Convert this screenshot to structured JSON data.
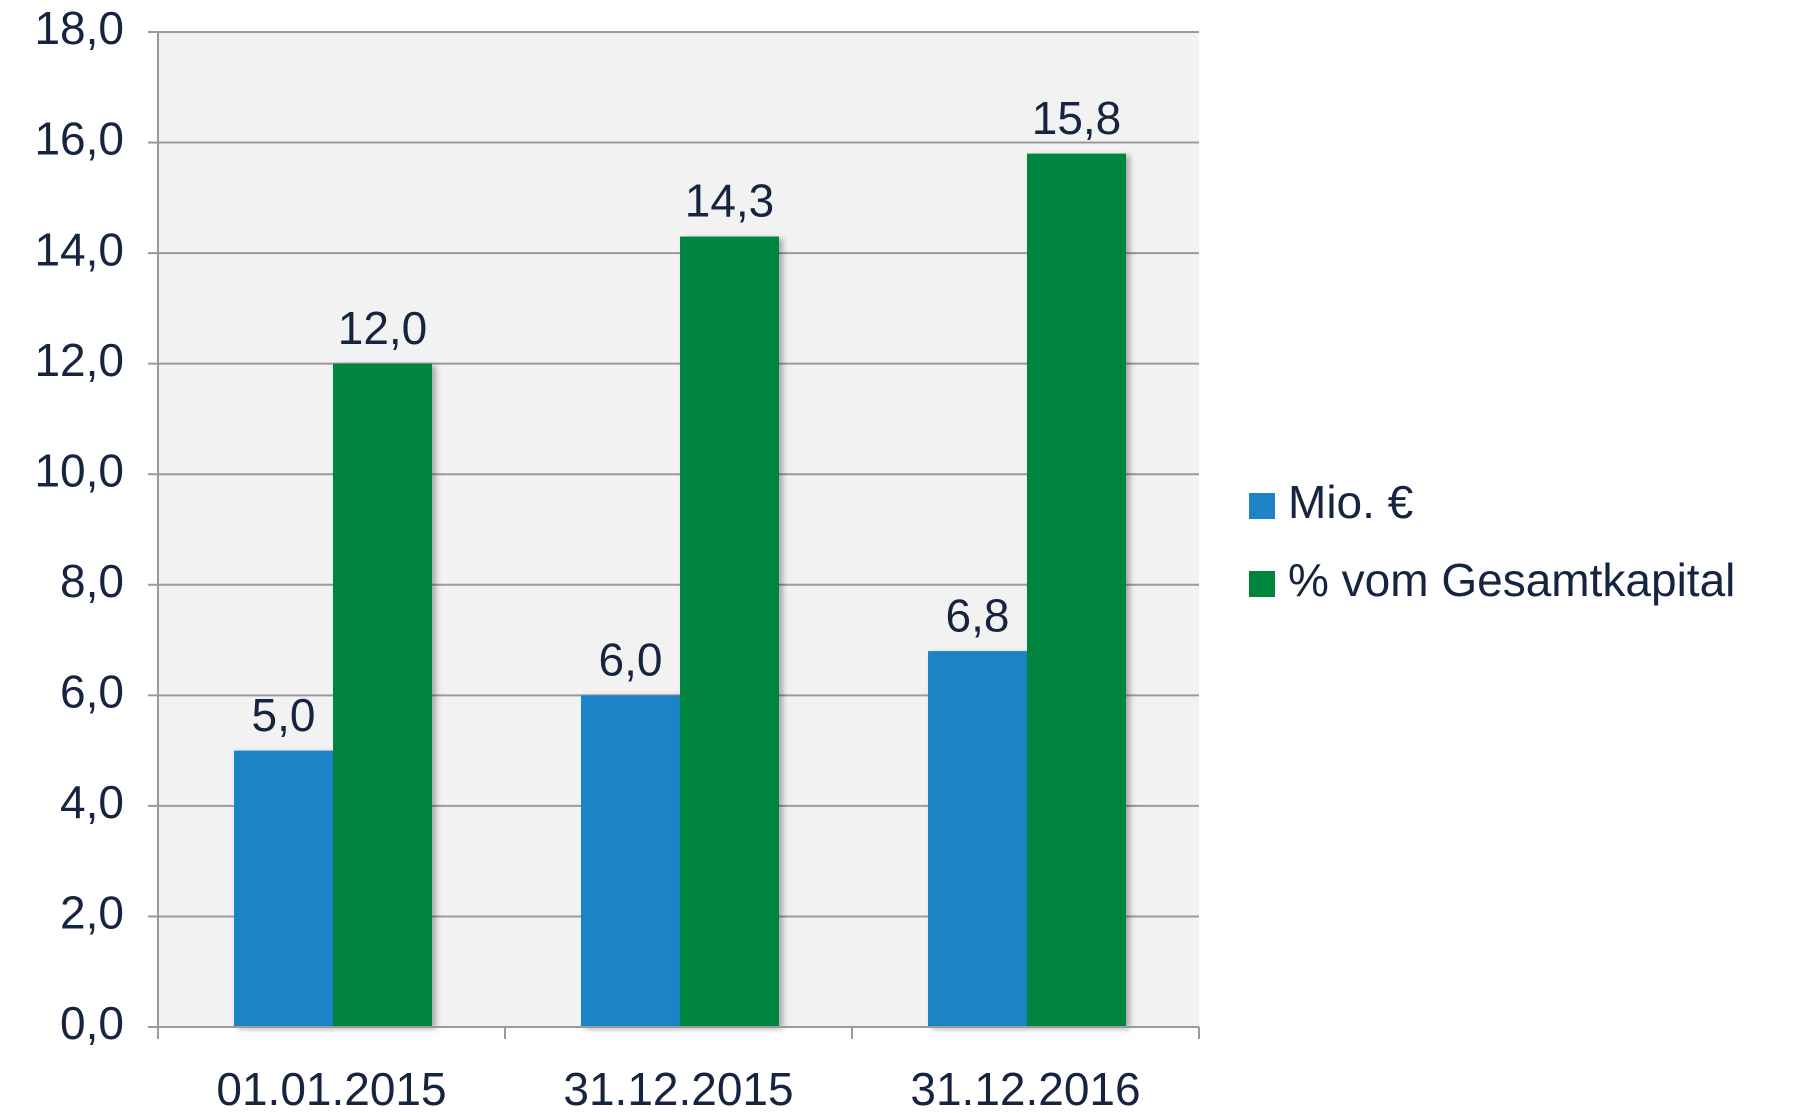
{
  "chart_data": {
    "type": "bar",
    "categories": [
      "01.01.2015",
      "31.12.2015",
      "31.12.2016"
    ],
    "series": [
      {
        "name": "Mio. €",
        "color": "#1f83c6",
        "values": [
          5.0,
          6.0,
          6.8
        ],
        "value_labels": [
          "5,0",
          "6,0",
          "6,8"
        ]
      },
      {
        "name": "% vom Gesamtkapital",
        "color": "#00853f",
        "values": [
          12.0,
          14.3,
          15.8
        ],
        "value_labels": [
          "12,0",
          "14,3",
          "15,8"
        ]
      }
    ],
    "ylim": [
      0,
      18
    ],
    "yticks": [
      {
        "value": 0,
        "label": "0,0"
      },
      {
        "value": 2,
        "label": "2,0"
      },
      {
        "value": 4,
        "label": "4,0"
      },
      {
        "value": 6,
        "label": "6,0"
      },
      {
        "value": 8,
        "label": "8,0"
      },
      {
        "value": 10,
        "label": "10,0"
      },
      {
        "value": 12,
        "label": "12,0"
      },
      {
        "value": 14,
        "label": "14,0"
      },
      {
        "value": 16,
        "label": "16,0"
      },
      {
        "value": 18,
        "label": "18,0"
      }
    ],
    "grid": true,
    "legend": "right"
  }
}
